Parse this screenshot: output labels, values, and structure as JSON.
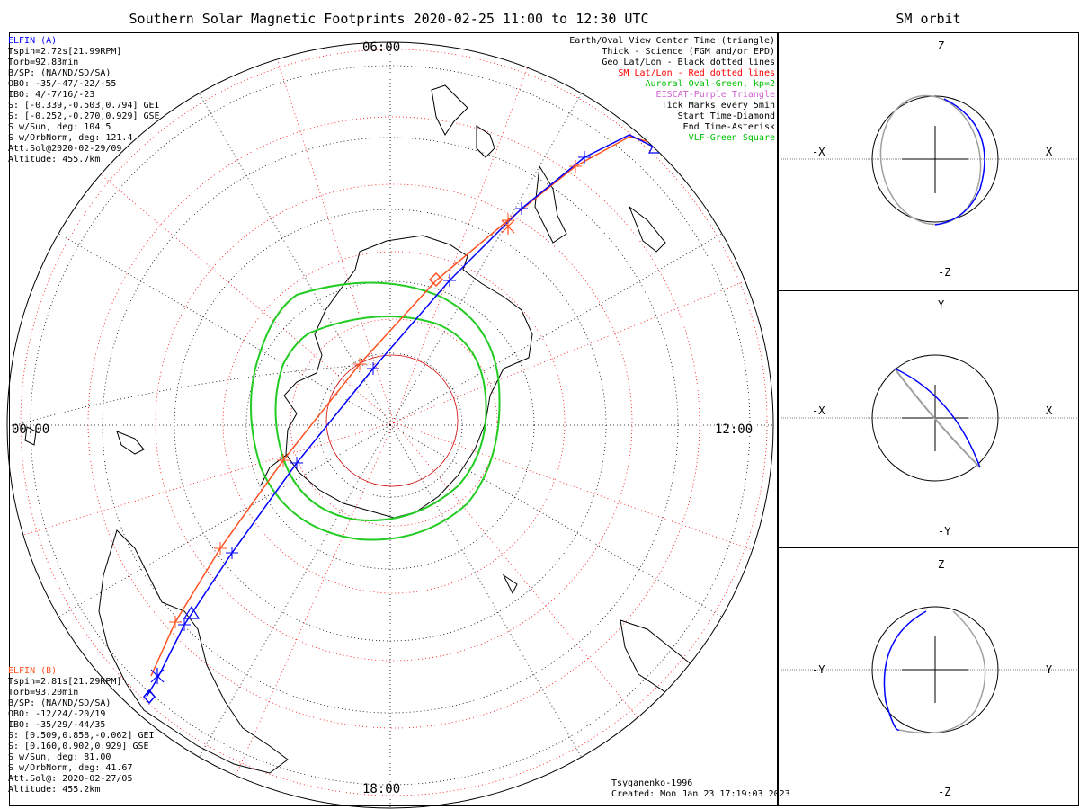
{
  "title": "Southern Solar Magnetic Footprints 2020-02-25 11:00 to 12:30 UTC",
  "orbit_title": "SM orbit",
  "time_labels": {
    "top": "06:00",
    "left": "00:00",
    "right": "12:00",
    "bottom": "18:00"
  },
  "elfin_a": {
    "name": "ELFIN (A)",
    "color": "#0000ff",
    "lines": [
      "Tspin=2.72s[21.99RPM]",
      "Torb=92.83min",
      "B/SP: (NA/ND/SD/SA)",
      "OBO: -35/-47/-22/-55",
      "IBO: 4/-7/16/-23",
      "S: [-0.339,-0.503,0.794] GEI",
      "S: [-0.252,-0.270,0.929] GSE",
      "S w/Sun, deg: 104.5",
      "S w/OrbNorm, deg: 121.4",
      "Att.Sol@2020-02-29/09",
      "Altitude: 455.7km"
    ]
  },
  "elfin_b": {
    "name": "ELFIN (B)",
    "color": "#ff5020",
    "lines": [
      "Tspin=2.81s[21.29RPM]",
      "Torb=93.20min",
      "B/SP: (NA/ND/SD/SA)",
      "OBO: -12/24/-20/19",
      "IBO: -35/29/-44/35",
      "S: [0.509,0.858,-0.062] GEI",
      "S: [0.160,0.902,0.929] GSE",
      "S w/Sun, deg: 81.00",
      "S w/OrbNorm, deg: 41.67",
      "Att.Sol@: 2020-02-27/05",
      "Altitude: 455.2km"
    ]
  },
  "legend": [
    {
      "text": "Earth/Oval View Center Time (triangle)",
      "color": "#000000"
    },
    {
      "text": "Thick - Science (FGM and/or EPD)",
      "color": "#000000"
    },
    {
      "text": "Geo Lat/Lon - Black dotted lines",
      "color": "#000000"
    },
    {
      "text": "SM Lat/Lon - Red dotted lines",
      "color": "#ff0000"
    },
    {
      "text": "Auroral Oval-Green, kp=2",
      "color": "#00c000"
    },
    {
      "text": "EISCAT-Purple Triangle",
      "color": "#d060d0"
    },
    {
      "text": "Tick Marks every 5min",
      "color": "#000000"
    },
    {
      "text": "Start Time-Diamond",
      "color": "#000000"
    },
    {
      "text": "End Time-Asterisk",
      "color": "#000000"
    },
    {
      "text": "VLF-Green Square",
      "color": "#00c000"
    }
  ],
  "credit": [
    "Tsyganenko-1996",
    "Created: Mon Jan 23 17:19:03 2023"
  ],
  "orbit_panels": [
    {
      "top": "Z",
      "bottom": "-Z",
      "left": "-X",
      "right": "X"
    },
    {
      "top": "Y",
      "bottom": "-Y",
      "left": "-X",
      "right": "X"
    },
    {
      "top": "Z",
      "bottom": "-Z",
      "left": "-Y",
      "right": "Y"
    }
  ],
  "colors": {
    "elfin_a": "#0000ff",
    "elfin_b": "#ff5020",
    "sm_grid": "#ff0000",
    "oval": "#22cc22",
    "orbit_gray": "#a0a0a0"
  }
}
